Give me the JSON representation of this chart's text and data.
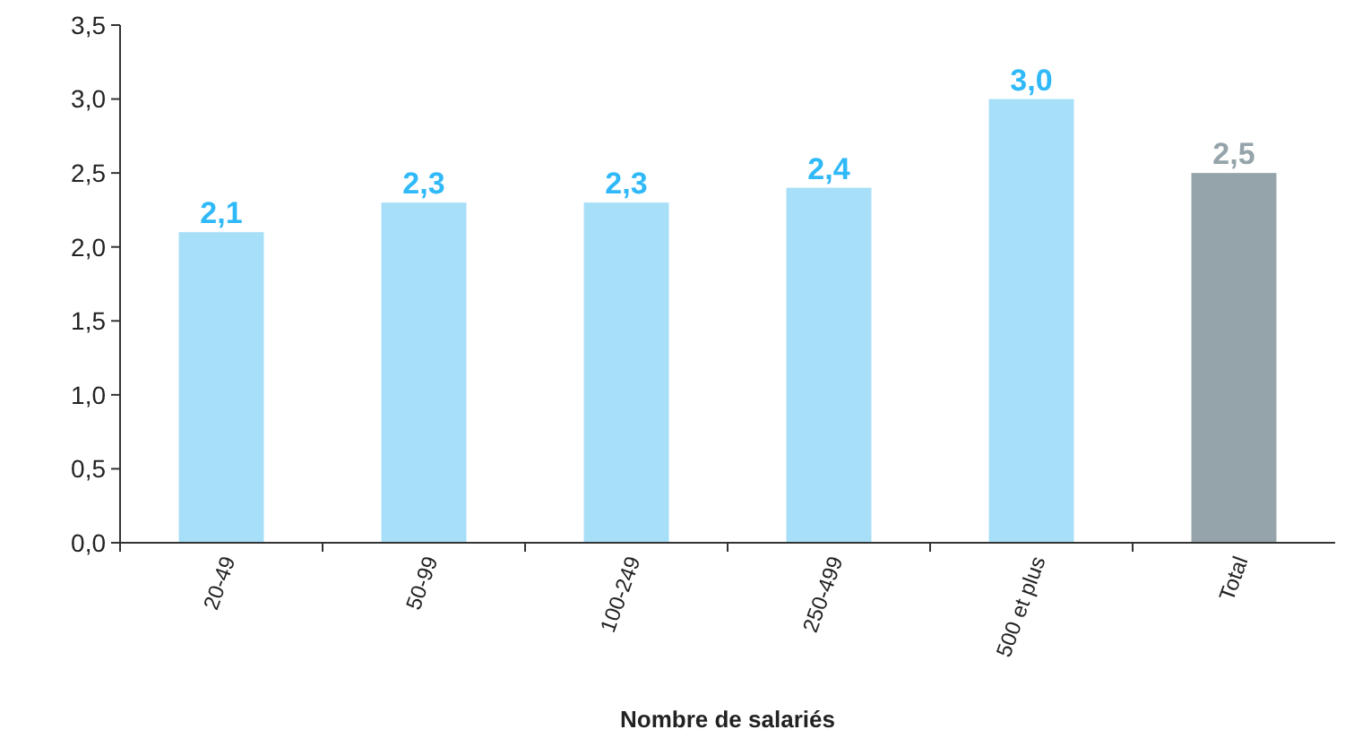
{
  "chart_data": {
    "type": "bar",
    "xlabel": "Nombre de salariés",
    "categories": [
      "20-49",
      "50-99",
      "100-249",
      "250-499",
      "500 et plus",
      "Total"
    ],
    "values": [
      2.1,
      2.3,
      2.3,
      2.4,
      3.0,
      2.5
    ],
    "value_labels": [
      "2,1",
      "2,3",
      "2,3",
      "2,4",
      "3,0",
      "2,5"
    ],
    "colors": [
      "#a8dff8",
      "#a8dff8",
      "#a8dff8",
      "#a8dff8",
      "#a8dff8",
      "#94a4aa"
    ],
    "ylim": [
      0,
      3.5
    ],
    "yticks": [
      {
        "value": 0,
        "label": "0,0"
      },
      {
        "value": 0.5,
        "label": "0,5"
      },
      {
        "value": 1,
        "label": "1,0"
      },
      {
        "value": 1.5,
        "label": "1,5"
      },
      {
        "value": 2,
        "label": "2,0"
      },
      {
        "value": 2.5,
        "label": "2,5"
      },
      {
        "value": 3,
        "label": "3,0"
      },
      {
        "value": 3.5,
        "label": "3,5"
      }
    ],
    "grid": false
  }
}
